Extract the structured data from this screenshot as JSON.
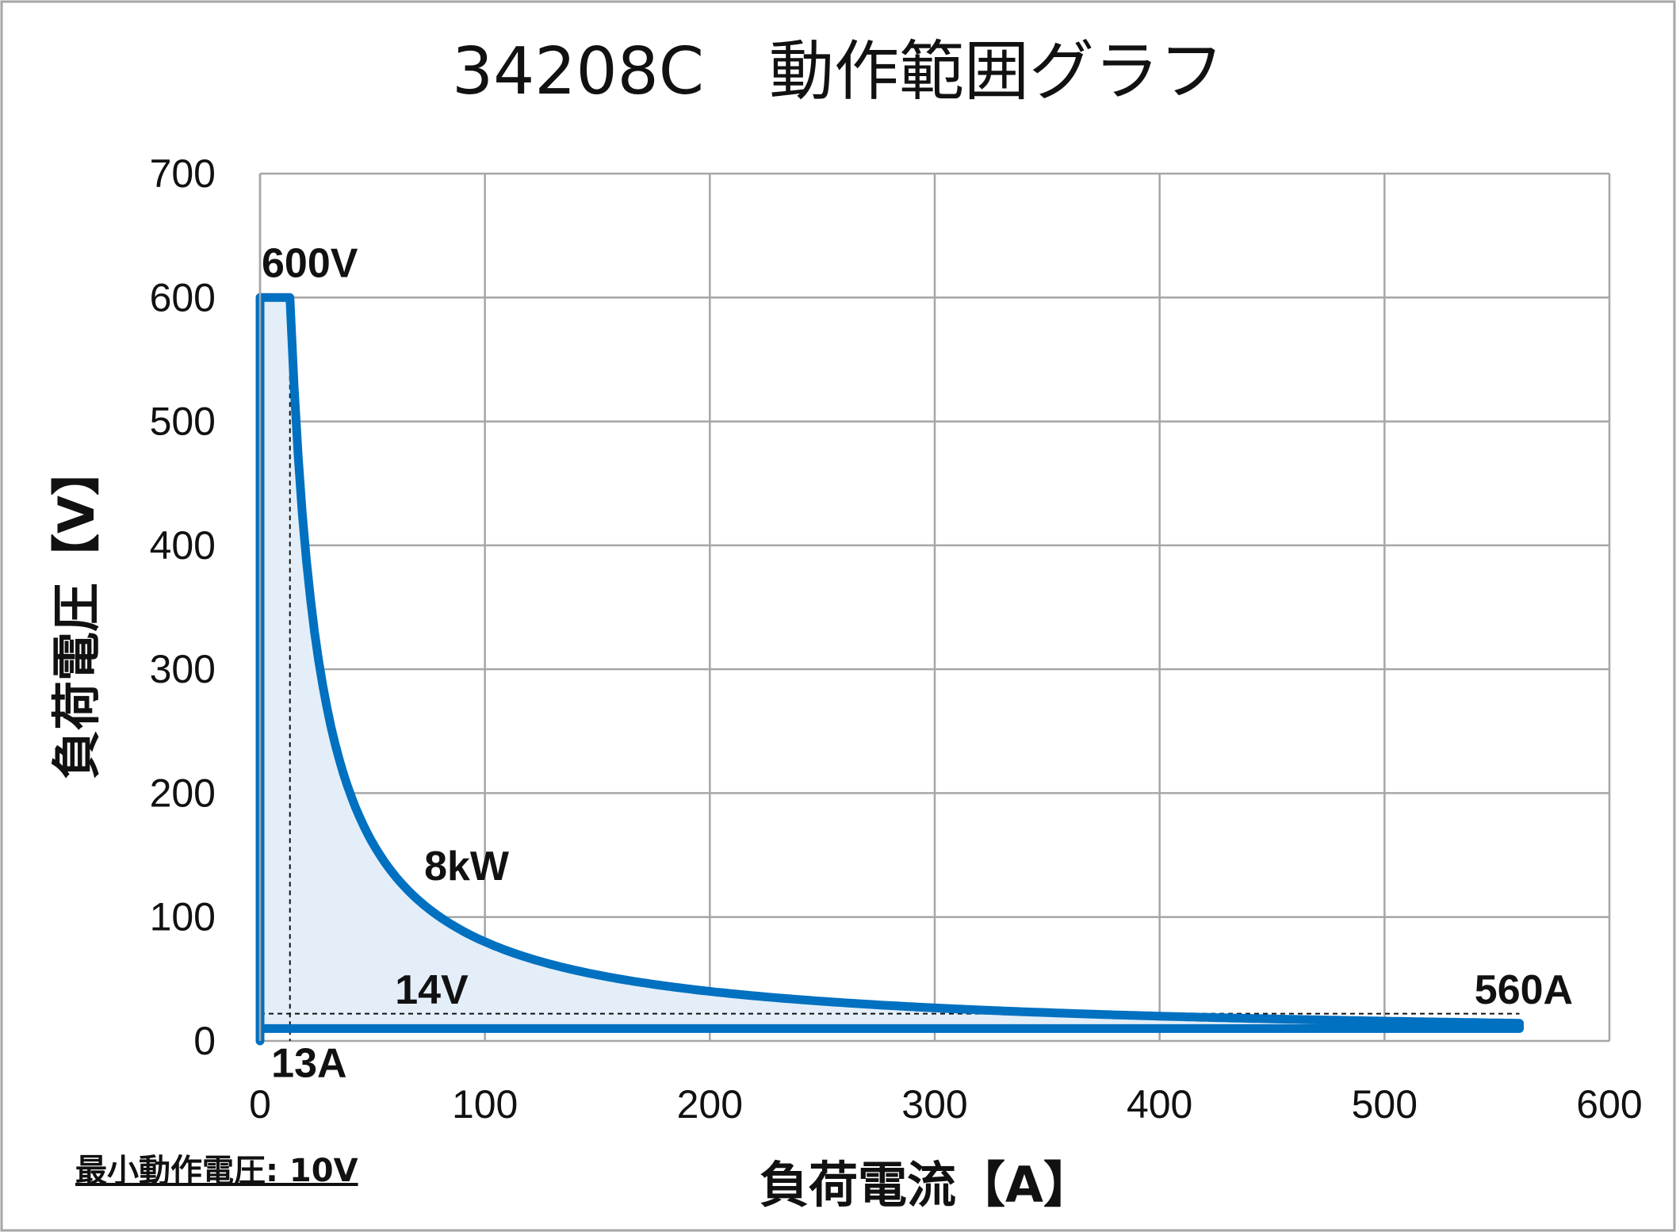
{
  "chart_data": {
    "type": "area",
    "title": "34208C　動作範囲グラフ",
    "xlabel": "負荷電流【A】",
    "ylabel": "負荷電圧【V】",
    "xlim": [
      0,
      600
    ],
    "ylim": [
      0,
      700
    ],
    "x_ticks": [
      0,
      100,
      200,
      300,
      400,
      500,
      600
    ],
    "y_ticks": [
      0,
      100,
      200,
      300,
      400,
      500,
      600,
      700
    ],
    "grid": true,
    "legend": "none",
    "line_color": "#0070C0",
    "fill_color": "#E3EEF8",
    "series": [
      {
        "boundary": {
          "max_voltage": 600,
          "max_current": 560,
          "max_power": 8000,
          "min_voltage": 10,
          "power_limit_start_current": 13.3,
          "voltage_at_max_current": 14.3
        }
      }
    ],
    "reference_lines": [
      {
        "type": "vertical",
        "x": 13.3
      },
      {
        "type": "horizontal",
        "y": 22
      }
    ],
    "annotations": [
      {
        "text": "600V",
        "x": 0,
        "y": 600
      },
      {
        "text": "8kW",
        "x": 73,
        "y": 130
      },
      {
        "text": "14V",
        "x": 60,
        "y": 30
      },
      {
        "text": "560A",
        "x": 540,
        "y": 30
      },
      {
        "text": "13A",
        "x": 5,
        "y": -10
      }
    ],
    "note": "最小動作電圧: 10V"
  }
}
